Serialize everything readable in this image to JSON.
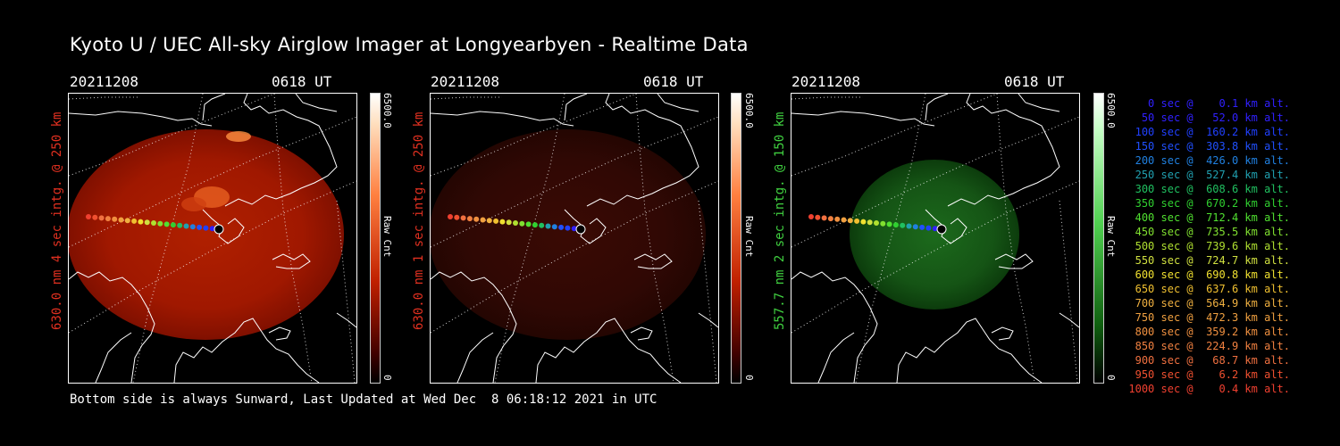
{
  "title": "Kyoto U / UEC All-sky Airglow Imager at Longyearbyen - Realtime Data",
  "panels": [
    {
      "date": "20211208",
      "time": "0618 UT",
      "ylabel": "630.0 nm 4 sec intg. @ 250 km",
      "ylabel_color": "#e03020",
      "cbar_max": "6500.0",
      "cbar_min": "0",
      "cbar_unit": "Raw Cnt",
      "tone": "red",
      "intensity": 1.0
    },
    {
      "date": "20211208",
      "time": "0618 UT",
      "ylabel": "630.0 nm 1 sec intg. @ 250 km",
      "ylabel_color": "#e03020",
      "cbar_max": "6500.0",
      "cbar_min": "0",
      "cbar_unit": "Raw Cnt",
      "tone": "red",
      "intensity": 0.25
    },
    {
      "date": "20211208",
      "time": "0618 UT",
      "ylabel": "557.7 nm 2 sec intg. @ 150 km",
      "ylabel_color": "#40d040",
      "cbar_max": "6500.0",
      "cbar_min": "0",
      "cbar_unit": "Raw Cnt",
      "tone": "green",
      "intensity": 0.6
    }
  ],
  "legend": [
    {
      "text": "   0 sec @    0.1 km alt.",
      "color": "#3020ff"
    },
    {
      "text": "  50 sec @   52.0 km alt.",
      "color": "#3020ff"
    },
    {
      "text": " 100 sec @  160.2 km alt.",
      "color": "#2040ff"
    },
    {
      "text": " 150 sec @  303.8 km alt.",
      "color": "#2050ff"
    },
    {
      "text": " 200 sec @  426.0 km alt.",
      "color": "#2080e0"
    },
    {
      "text": " 250 sec @  527.4 km alt.",
      "color": "#20a0b0"
    },
    {
      "text": " 300 sec @  608.6 km alt.",
      "color": "#20c060"
    },
    {
      "text": " 350 sec @  670.2 km alt.",
      "color": "#30d030"
    },
    {
      "text": " 400 sec @  712.4 km alt.",
      "color": "#50e030"
    },
    {
      "text": " 450 sec @  735.5 km alt.",
      "color": "#80e030"
    },
    {
      "text": " 500 sec @  739.6 km alt.",
      "color": "#b0e030"
    },
    {
      "text": " 550 sec @  724.7 km alt.",
      "color": "#d0e040"
    },
    {
      "text": " 600 sec @  690.8 km alt.",
      "color": "#f0e030"
    },
    {
      "text": " 650 sec @  637.6 km alt.",
      "color": "#f0c030"
    },
    {
      "text": " 700 sec @  564.9 km alt.",
      "color": "#f0b040"
    },
    {
      "text": " 750 sec @  472.3 km alt.",
      "color": "#f0a040"
    },
    {
      "text": " 800 sec @  359.2 km alt.",
      "color": "#f09040"
    },
    {
      "text": " 850 sec @  224.9 km alt.",
      "color": "#f08040"
    },
    {
      "text": " 900 sec @   68.7 km alt.",
      "color": "#f07040"
    },
    {
      "text": " 950 sec @    6.2 km alt.",
      "color": "#f05030"
    },
    {
      "text": "1000 sec @    0.4 km alt.",
      "color": "#f04030"
    }
  ],
  "footer": "Bottom side is always Sunward, Last Updated at Wed Dec  8 06:18:12 2021 in UTC"
}
